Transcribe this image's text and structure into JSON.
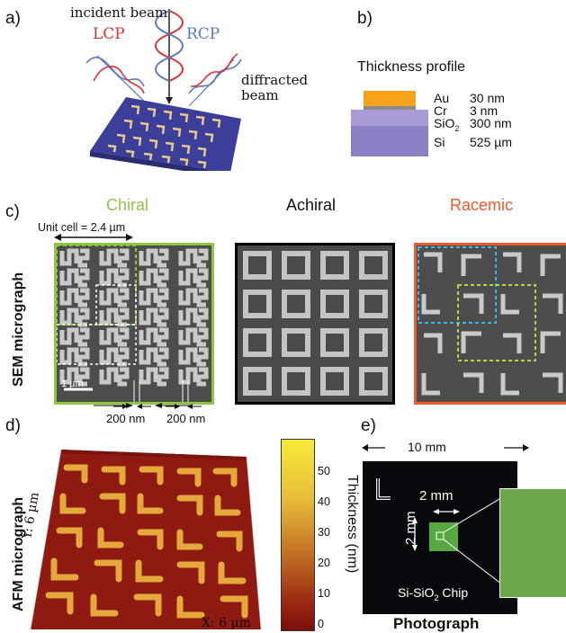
{
  "panel_labels": {
    "a": "a)",
    "b": "b)",
    "c": "c)",
    "d": "d)",
    "e": "e)"
  },
  "panel_a": {
    "incident": "incident beam",
    "lcp": "LCP",
    "rcp": "RCP",
    "diffracted_1": "diffracted",
    "diffracted_2": "beam",
    "colors": {
      "lcp": "#e0302f",
      "rcp": "#5a78c8",
      "substrate": "#3c3f9a",
      "gold": "#e9c98a"
    }
  },
  "panel_b": {
    "title": "Thickness profile",
    "layers": [
      {
        "name": "Au",
        "thickness": "30 nm",
        "color": "#f6a21a"
      },
      {
        "name": "Cr",
        "thickness": "3 nm",
        "color": "#8a8a8a"
      },
      {
        "name": "SiO",
        "sub": "2",
        "thickness": "300 nm",
        "color": "#a99bd3"
      },
      {
        "name": "Si",
        "thickness": "525 µm",
        "color": "#8d7fc4"
      }
    ]
  },
  "panel_c": {
    "row_label": "SEM micrograph",
    "titles": {
      "chiral": "Chiral",
      "achiral": "Achiral",
      "racemic": "Racemic"
    },
    "title_colors": {
      "chiral": "#8dc63f",
      "achiral": "#111111",
      "racemic": "#ee5a2c"
    },
    "unit_cell": "Unit cell = 2.4 µm",
    "scale_bar": "1 µm",
    "gap_left": "200 nm",
    "gap_right": "200 nm"
  },
  "panel_d": {
    "row_label": "AFM micrograph",
    "y_axis": "Y: 6 µm",
    "x_axis": "X: 6 µm",
    "colorbar_label": "Thickness (nm)",
    "colorbar_ticks": [
      "50",
      "40",
      "30",
      "20",
      "10",
      "0"
    ]
  },
  "panel_e": {
    "width": "10 mm",
    "inner": "2 mm",
    "inner_v": "2 mm",
    "chip_label": "Si-SiO",
    "chip_sub": "2",
    "chip_label_end": " Chip",
    "caption": "Photograph"
  }
}
